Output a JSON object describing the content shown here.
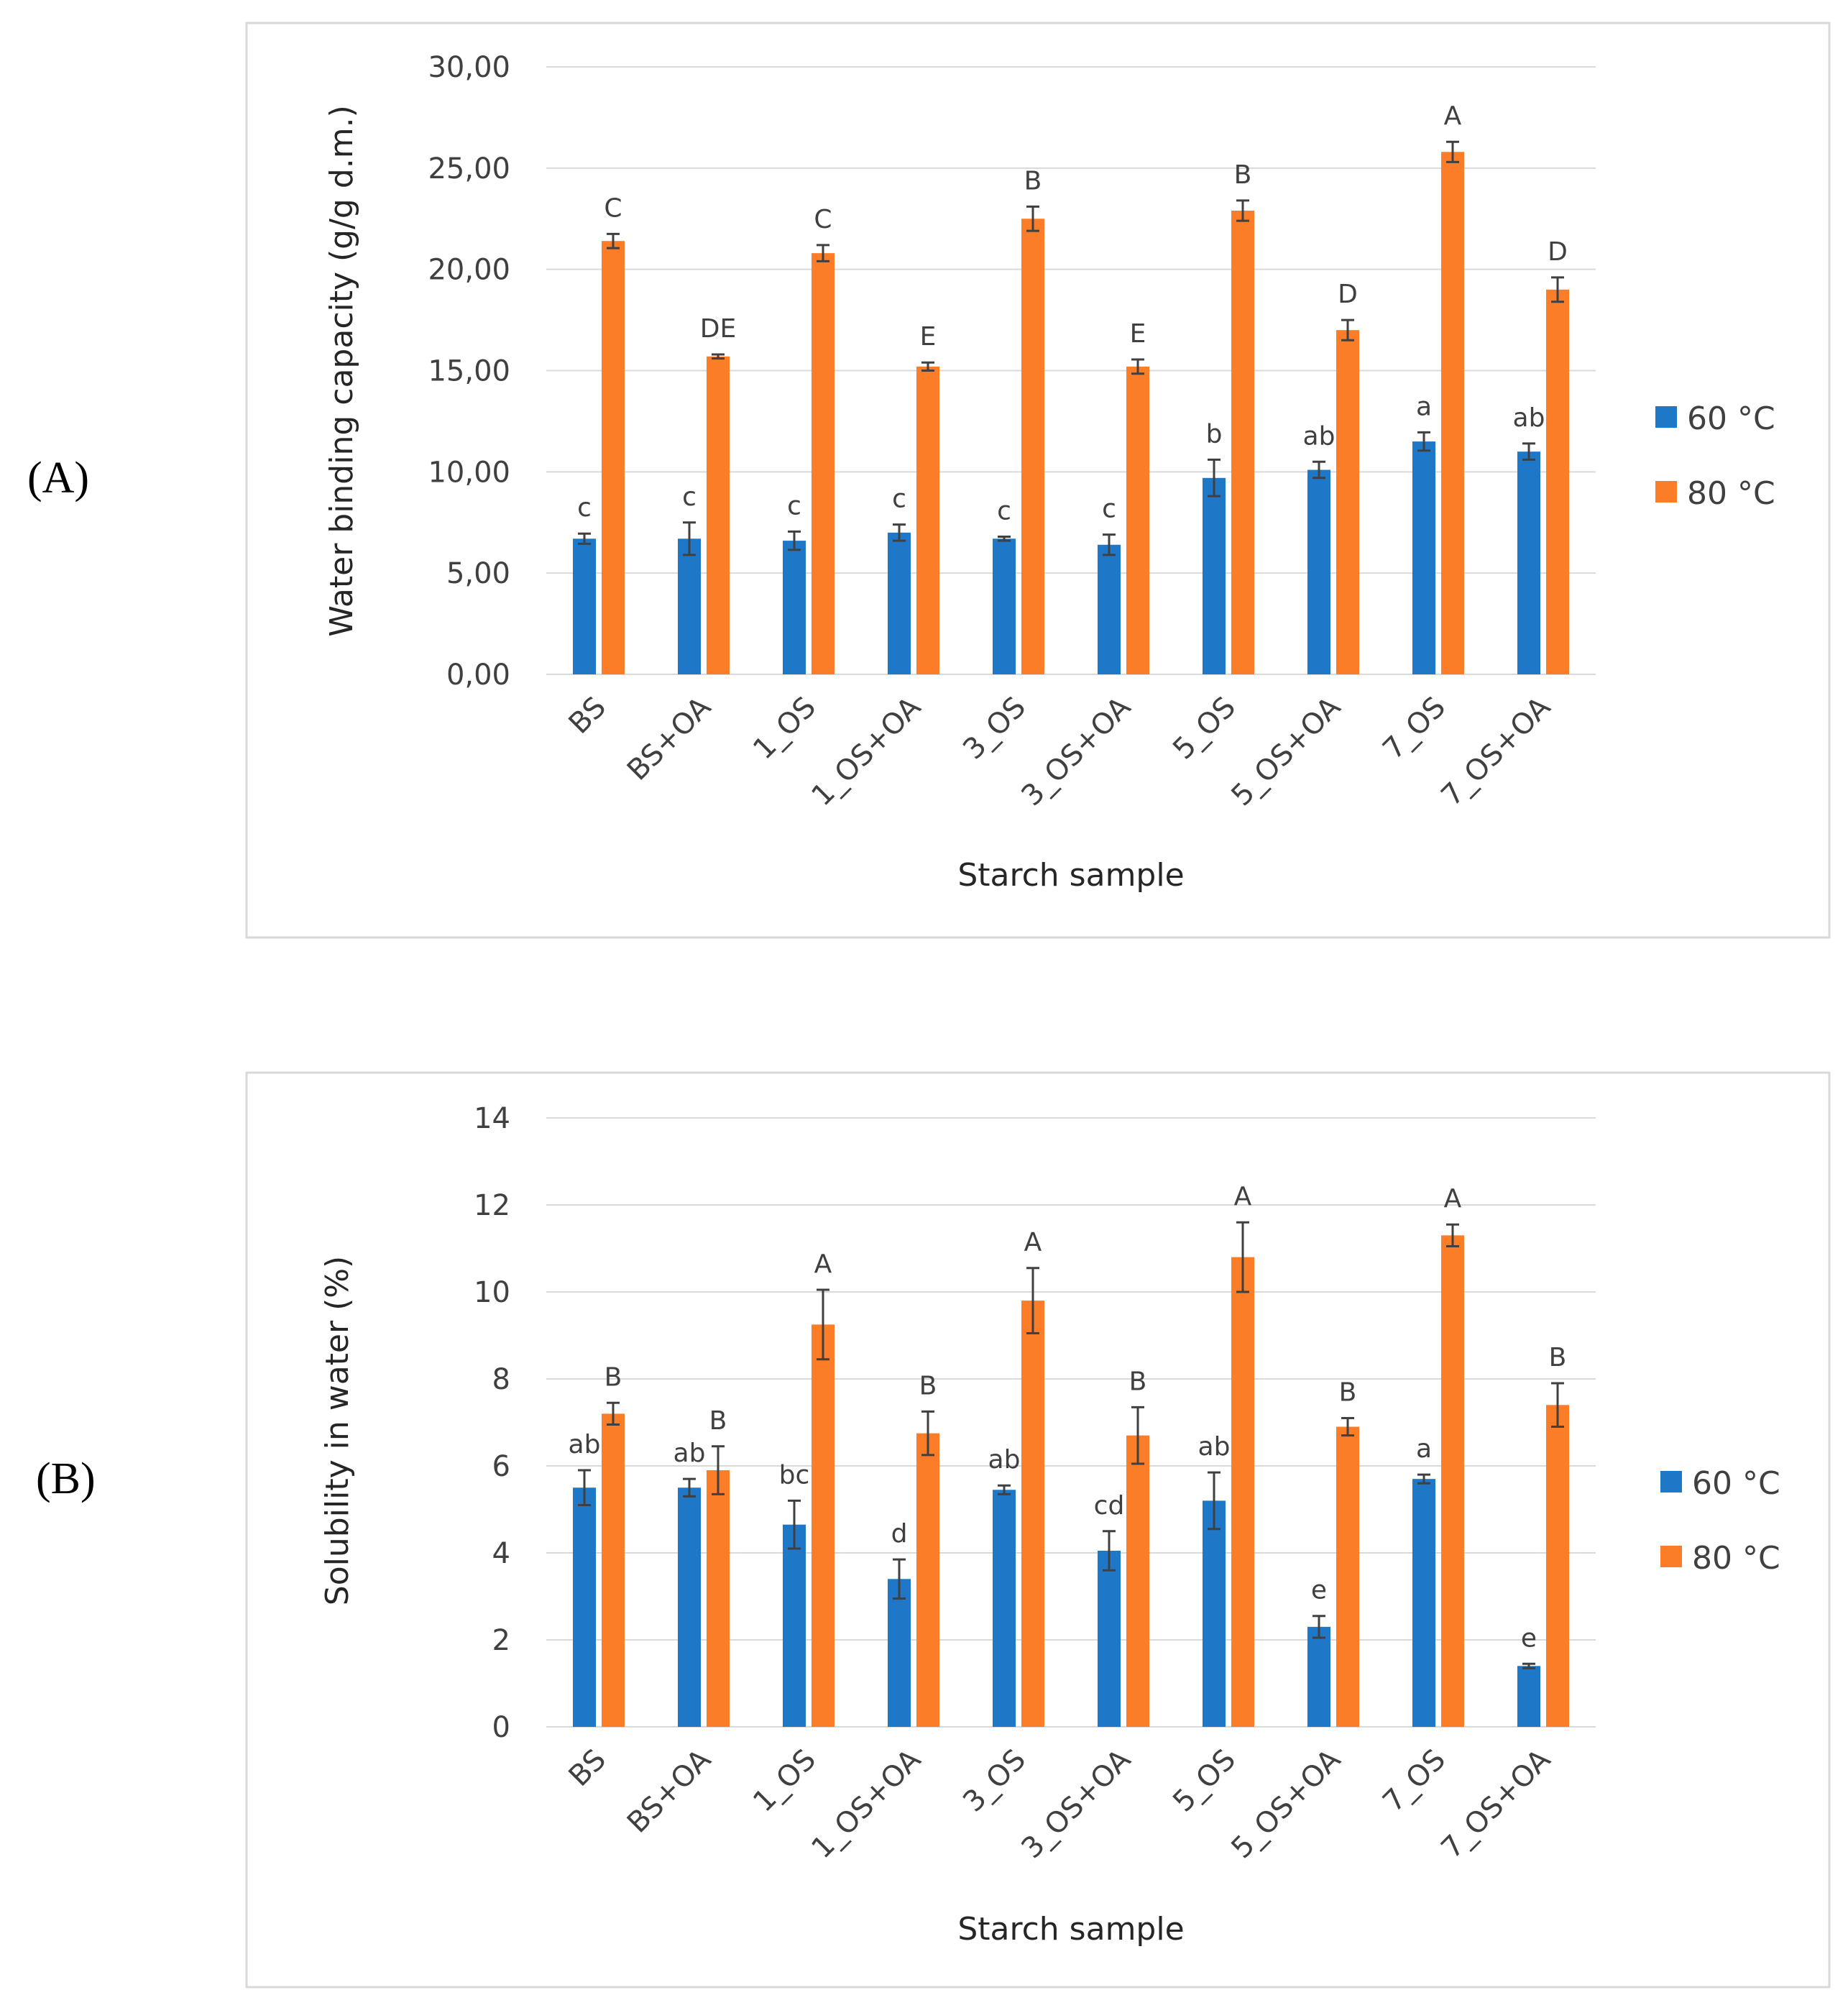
{
  "colors": {
    "series_60": "#1f77c8",
    "series_80": "#fb7d27"
  },
  "chart_data": [
    {
      "panel": "A",
      "panel_label": "(A)",
      "type": "bar",
      "title": "",
      "xlabel": "Starch sample",
      "ylabel": "Water binding capacity (g/g d.m.)",
      "ylim": [
        0,
        30
      ],
      "yticks": [
        "0,00",
        "5,00",
        "10,00",
        "15,00",
        "20,00",
        "25,00",
        "30,00"
      ],
      "ytick_values": [
        0,
        5,
        10,
        15,
        20,
        25,
        30
      ],
      "categories": [
        "BS",
        "BS+OA",
        "1_OS",
        "1_OS+OA",
        "3_OS",
        "3_OS+OA",
        "5_OS",
        "5_OS+OA",
        "7_OS",
        "7_OS+OA"
      ],
      "series": [
        {
          "name": "60 °C",
          "values": [
            6.7,
            6.7,
            6.6,
            7.0,
            6.7,
            6.4,
            9.7,
            10.1,
            11.5,
            11.0
          ],
          "errors": [
            0.25,
            0.8,
            0.45,
            0.4,
            0.1,
            0.5,
            0.9,
            0.4,
            0.45,
            0.4
          ],
          "letters": [
            "c",
            "c",
            "c",
            "c",
            "c",
            "c",
            "b",
            "ab",
            "a",
            "ab"
          ]
        },
        {
          "name": "80 °C",
          "values": [
            21.4,
            15.7,
            20.8,
            15.2,
            22.5,
            15.2,
            22.9,
            17.0,
            25.8,
            19.0
          ],
          "errors": [
            0.35,
            0.1,
            0.4,
            0.2,
            0.6,
            0.35,
            0.5,
            0.5,
            0.5,
            0.6
          ],
          "letters": [
            "C",
            "DE",
            "C",
            "E",
            "B",
            "E",
            "B",
            "D",
            "A",
            "D"
          ]
        }
      ],
      "legend": "right"
    },
    {
      "panel": "B",
      "panel_label": "(B)",
      "type": "bar",
      "title": "",
      "xlabel": "Starch sample",
      "ylabel": "Solubility in water (%)",
      "ylim": [
        0,
        14
      ],
      "yticks": [
        "0",
        "2",
        "4",
        "6",
        "8",
        "10",
        "12",
        "14"
      ],
      "ytick_values": [
        0,
        2,
        4,
        6,
        8,
        10,
        12,
        14
      ],
      "categories": [
        "BS",
        "BS+OA",
        "1_OS",
        "1_OS+OA",
        "3_OS",
        "3_OS+OA",
        "5_OS",
        "5_OS+OA",
        "7_OS",
        "7_OS+OA"
      ],
      "series": [
        {
          "name": "60 °C",
          "values": [
            5.5,
            5.5,
            4.65,
            3.4,
            5.45,
            4.05,
            5.2,
            2.3,
            5.7,
            1.4
          ],
          "errors": [
            0.4,
            0.2,
            0.55,
            0.45,
            0.1,
            0.45,
            0.65,
            0.25,
            0.1,
            0.05
          ],
          "letters": [
            "ab",
            "ab",
            "bc",
            "d",
            "ab",
            "cd",
            "ab",
            "e",
            "a",
            "e"
          ]
        },
        {
          "name": "80 °C",
          "values": [
            7.2,
            5.9,
            9.25,
            6.75,
            9.8,
            6.7,
            10.8,
            6.9,
            11.3,
            7.4
          ],
          "errors": [
            0.25,
            0.55,
            0.8,
            0.5,
            0.75,
            0.65,
            0.8,
            0.2,
            0.25,
            0.5
          ],
          "letters": [
            "B",
            "B",
            "A",
            "B",
            "A",
            "B",
            "A",
            "B",
            "A",
            "B"
          ]
        }
      ],
      "legend": "right"
    }
  ]
}
